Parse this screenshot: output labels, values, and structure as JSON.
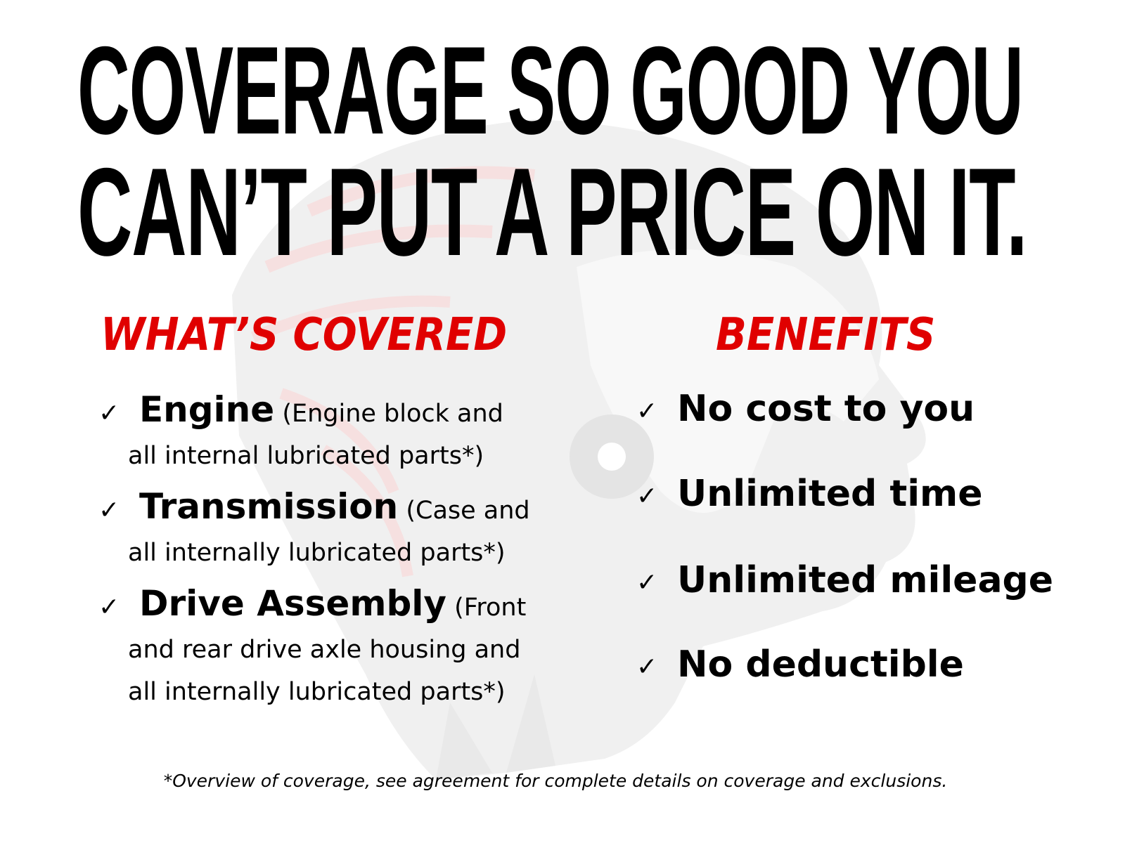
{
  "headline": {
    "line1": "COVERAGE SO GOOD YOU",
    "line2": "CAN’T PUT A PRICE ON IT."
  },
  "covered": {
    "heading": "WHAT’S COVERED",
    "items": [
      {
        "check": "✓",
        "title": "Engine",
        "detail_a": "(Engine block and",
        "detail_b": "all internal lubricated parts*)"
      },
      {
        "check": "✓",
        "title": "Transmission",
        "detail_a": "(Case and",
        "detail_b": "all internally lubricated parts*)"
      },
      {
        "check": "✓",
        "title": "Drive Assembly",
        "detail_a": "(Front",
        "detail_b": "and rear drive axle housing and",
        "detail_c": "all internally lubricated parts*)"
      }
    ]
  },
  "benefits": {
    "heading": "BENEFITS",
    "items": [
      {
        "check": "✓",
        "label": "No cost to you"
      },
      {
        "check": "✓",
        "label": "Unlimited time"
      },
      {
        "check": "✓",
        "label": "Unlimited mileage"
      },
      {
        "check": "✓",
        "label": "No deductible"
      }
    ]
  },
  "footnote": "*Overview of coverage, see agreement for complete details on coverage and exclusions.",
  "colors": {
    "accent": "#e00000",
    "text": "#000000",
    "watermark": "#d9d9d9",
    "watermark_accent": "#f0c8c8"
  },
  "watermark_icon": "mascot-head-watermark"
}
